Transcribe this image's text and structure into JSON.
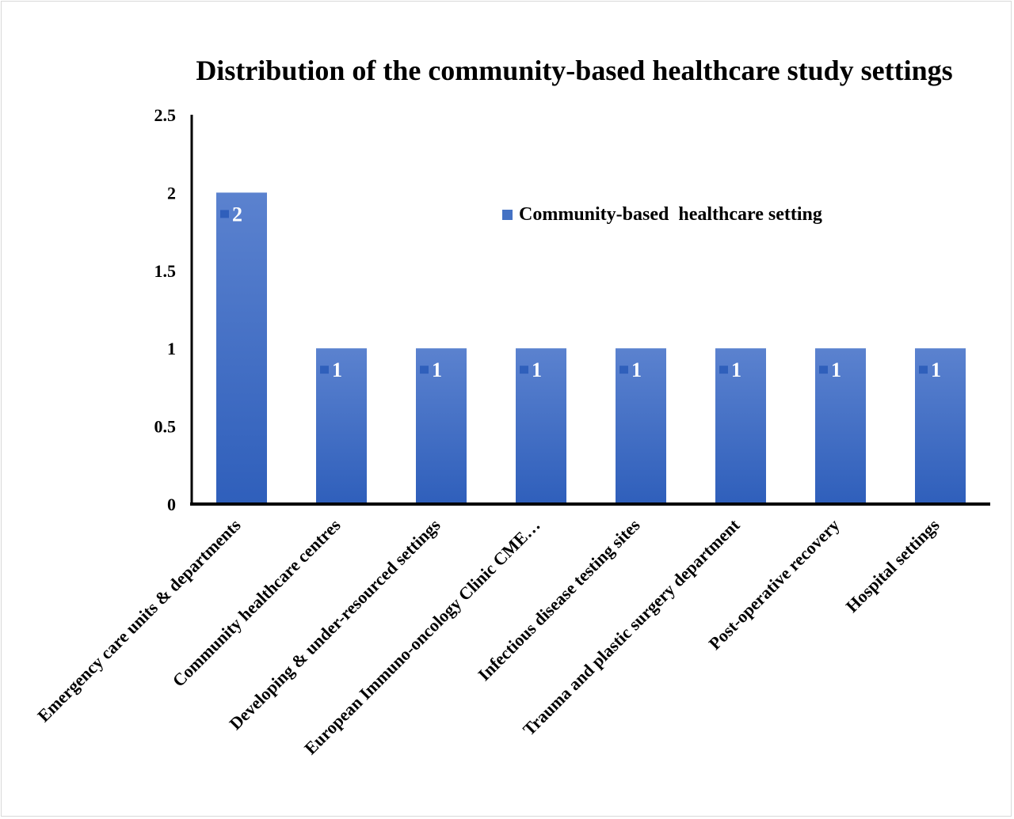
{
  "chart_data": {
    "type": "bar",
    "title": "Distribution of the community-based healthcare study settings",
    "xlabel": "",
    "ylabel": "",
    "ylim": [
      0,
      2.5
    ],
    "yticks": [
      "0",
      "0.5",
      "1",
      "1.5",
      "2",
      "2.5"
    ],
    "grid": false,
    "legend_position": "top-right",
    "categories": [
      "Emergency care units & departments",
      "Community healthcare centres",
      "Developing & under-resourced settings",
      "European Immuno-oncology Clinic CME…",
      "Infectious disease testing sites",
      "Trauma and plastic surgery department",
      "Post-operative recovery",
      "Hospital settings"
    ],
    "series": [
      {
        "name": "Community-based  healthcare setting",
        "values": [
          2,
          1,
          1,
          1,
          1,
          1,
          1,
          1
        ],
        "data_labels": [
          "2",
          "1",
          "1",
          "1",
          "1",
          "1",
          "1",
          "1"
        ],
        "color": "#4472c4"
      }
    ]
  }
}
